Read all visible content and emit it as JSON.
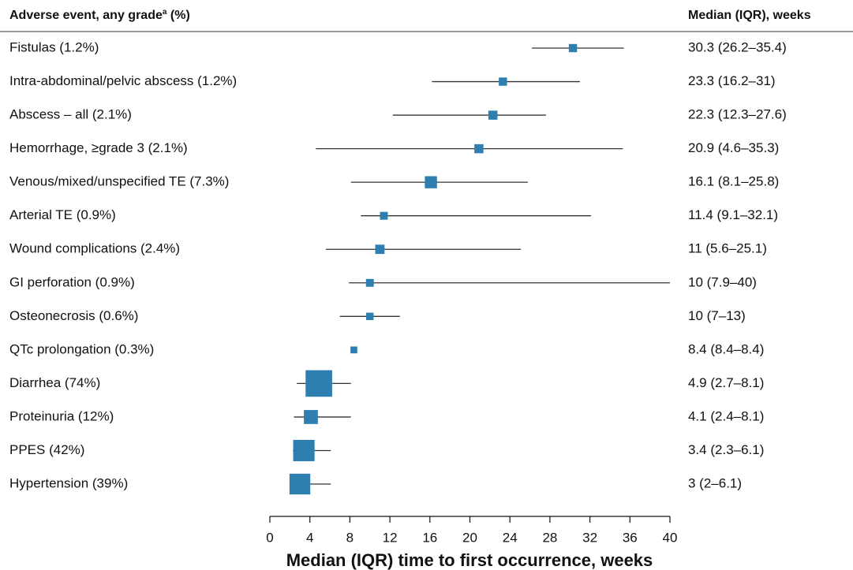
{
  "chart_data": {
    "type": "forest",
    "header_left": "Adverse event, any grade",
    "header_left_sup": "a",
    "header_left_suffix": " (%)",
    "header_right": "Median (IQR), weeks",
    "xlabel": "Median (IQR) time to first occurrence, weeks",
    "color": "#2e7fb0",
    "categories": [
      "Fistulas (1.2%)",
      "Intra-abdominal/pelvic abscess (1.2%)",
      "Abscess – all (2.1%)",
      "Hemorrhage, ≥grade 3 (2.1%)",
      "Venous/mixed/unspecified TE (7.3%)",
      "Arterial TE (0.9%)",
      "Wound complications (2.4%)",
      "GI perforation (0.9%)",
      "Osteonecrosis (0.6%)",
      "QTc prolongation (0.3%)",
      "Diarrhea (74%)",
      "Proteinuria (12%)",
      "PPES (42%)",
      "Hypertension (39%)"
    ],
    "medians": [
      30.3,
      23.3,
      22.3,
      20.9,
      16.1,
      11.4,
      11,
      10,
      10,
      8.4,
      4.9,
      4.1,
      3.4,
      3
    ],
    "lows": [
      26.2,
      16.2,
      12.3,
      4.6,
      8.1,
      9.1,
      5.6,
      7.9,
      7,
      8.4,
      2.7,
      2.4,
      2.3,
      2
    ],
    "highs": [
      35.4,
      31,
      27.6,
      35.3,
      25.8,
      32.1,
      25.1,
      40,
      13,
      8.4,
      8.1,
      8.1,
      6.1,
      6.1
    ],
    "sizes": [
      1.2,
      1.2,
      2.1,
      2.1,
      7.3,
      0.9,
      2.4,
      0.9,
      0.6,
      0.3,
      74,
      12,
      42,
      39
    ],
    "value_labels": [
      "30.3 (26.2–35.4)",
      "23.3 (16.2–31)",
      "22.3 (12.3–27.6)",
      "20.9 (4.6–35.3)",
      "16.1 (8.1–25.8)",
      "11.4 (9.1–32.1)",
      "11 (5.6–25.1)",
      "10 (7.9–40)",
      "10 (7–13)",
      "8.4 (8.4–8.4)",
      "4.9 (2.7–8.1)",
      "4.1 (2.4–8.1)",
      "3.4 (2.3–6.1)",
      "3 (2–6.1)"
    ],
    "xlim": [
      0,
      40
    ],
    "xticks": [
      0,
      4,
      8,
      12,
      16,
      20,
      24,
      28,
      32,
      36,
      40
    ]
  }
}
